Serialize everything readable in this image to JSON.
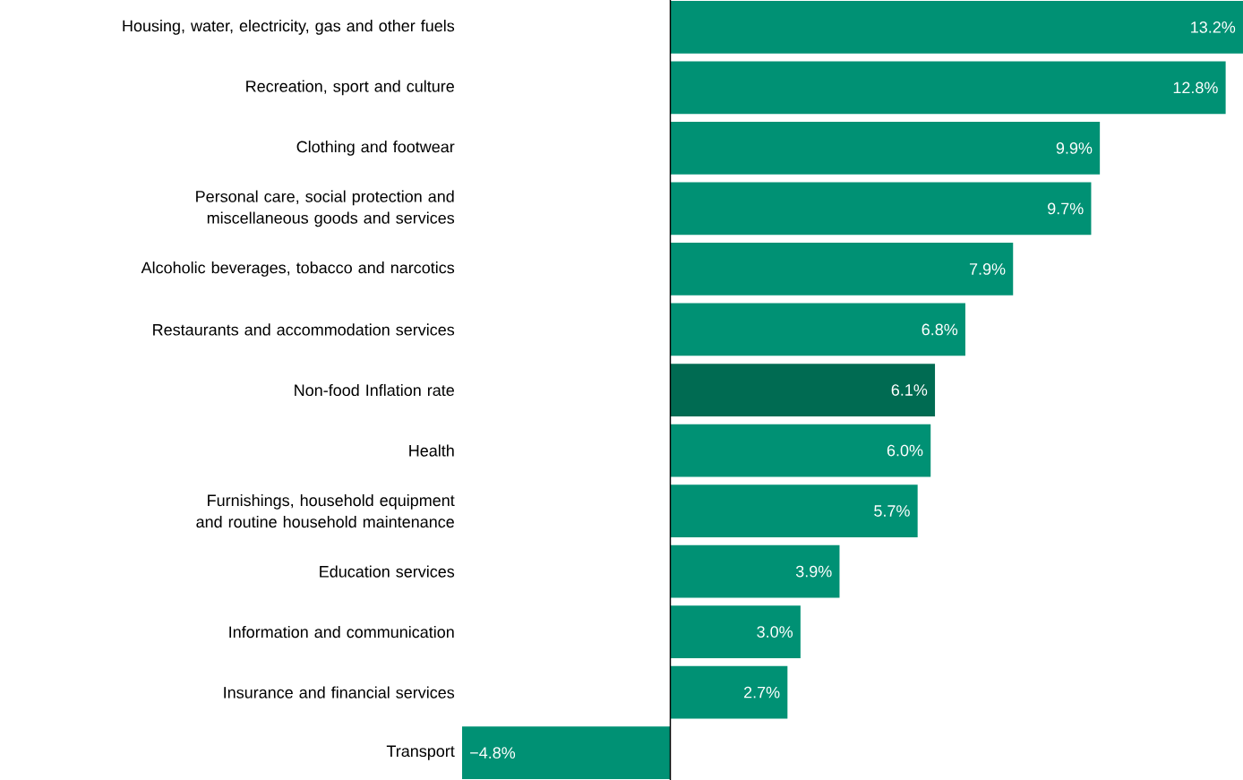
{
  "chart_data": {
    "type": "bar",
    "orientation": "horizontal",
    "categories": [
      "Housing, water, electricity, gas and other fuels",
      "Recreation, sport and culture",
      "Clothing and footwear",
      "Personal care, social protection and miscellaneous goods and services",
      "Alcoholic beverages, tobacco and narcotics",
      "Restaurants and accommodation services",
      "Non-food Inflation rate",
      "Health",
      "Furnishings, household equipment and routine household maintenance",
      "Education services",
      "Information and communication",
      "Insurance and financial services",
      "Transport"
    ],
    "values": [
      13.2,
      12.8,
      9.9,
      9.7,
      7.9,
      6.8,
      6.1,
      6.0,
      5.7,
      3.9,
      3.0,
      2.7,
      -4.8
    ],
    "value_labels": [
      "13.2%",
      "12.8%",
      "9.9%",
      "9.7%",
      "7.9%",
      "6.8%",
      "6.1%",
      "6.0%",
      "5.7%",
      "3.9%",
      "3.0%",
      "2.7%",
      "−4.8%"
    ],
    "colors": [
      "#009174",
      "#009174",
      "#009174",
      "#009174",
      "#009174",
      "#009174",
      "#006b52",
      "#009174",
      "#009174",
      "#009174",
      "#009174",
      "#009174",
      "#009174"
    ]
  }
}
